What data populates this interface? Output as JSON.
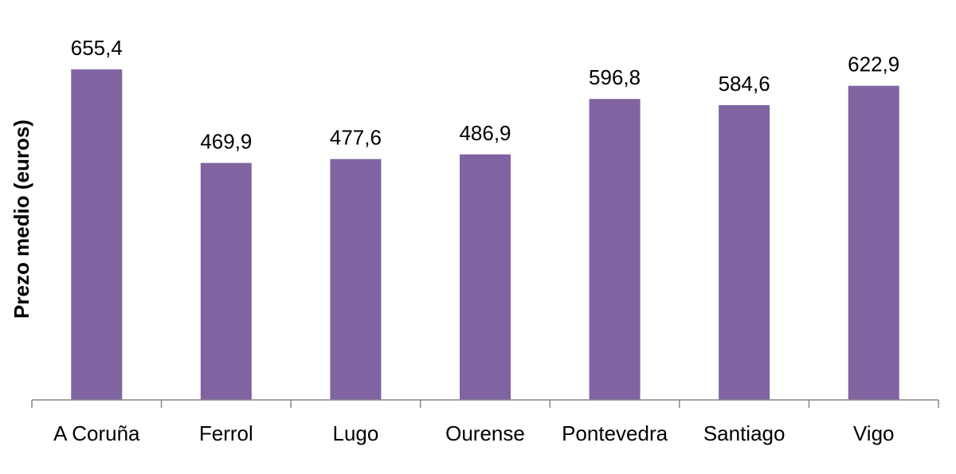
{
  "chart_data": {
    "type": "bar",
    "categories": [
      "A Coruña",
      "Ferrol",
      "Lugo",
      "Ourense",
      "Pontevedra",
      "Santiago",
      "Vigo"
    ],
    "values": [
      655.4,
      469.9,
      477.6,
      486.9,
      596.8,
      584.6,
      622.9
    ],
    "value_labels": [
      "655,4",
      "469,9",
      "477,6",
      "486,9",
      "596,8",
      "584,6",
      "622,9"
    ],
    "title": "",
    "xlabel": "",
    "ylabel": "Prezo medio (euros)",
    "ylim": [
      0,
      700
    ],
    "grid": false,
    "legend": "none",
    "bar_color": "#8064A2",
    "axis_color": "#868686"
  }
}
